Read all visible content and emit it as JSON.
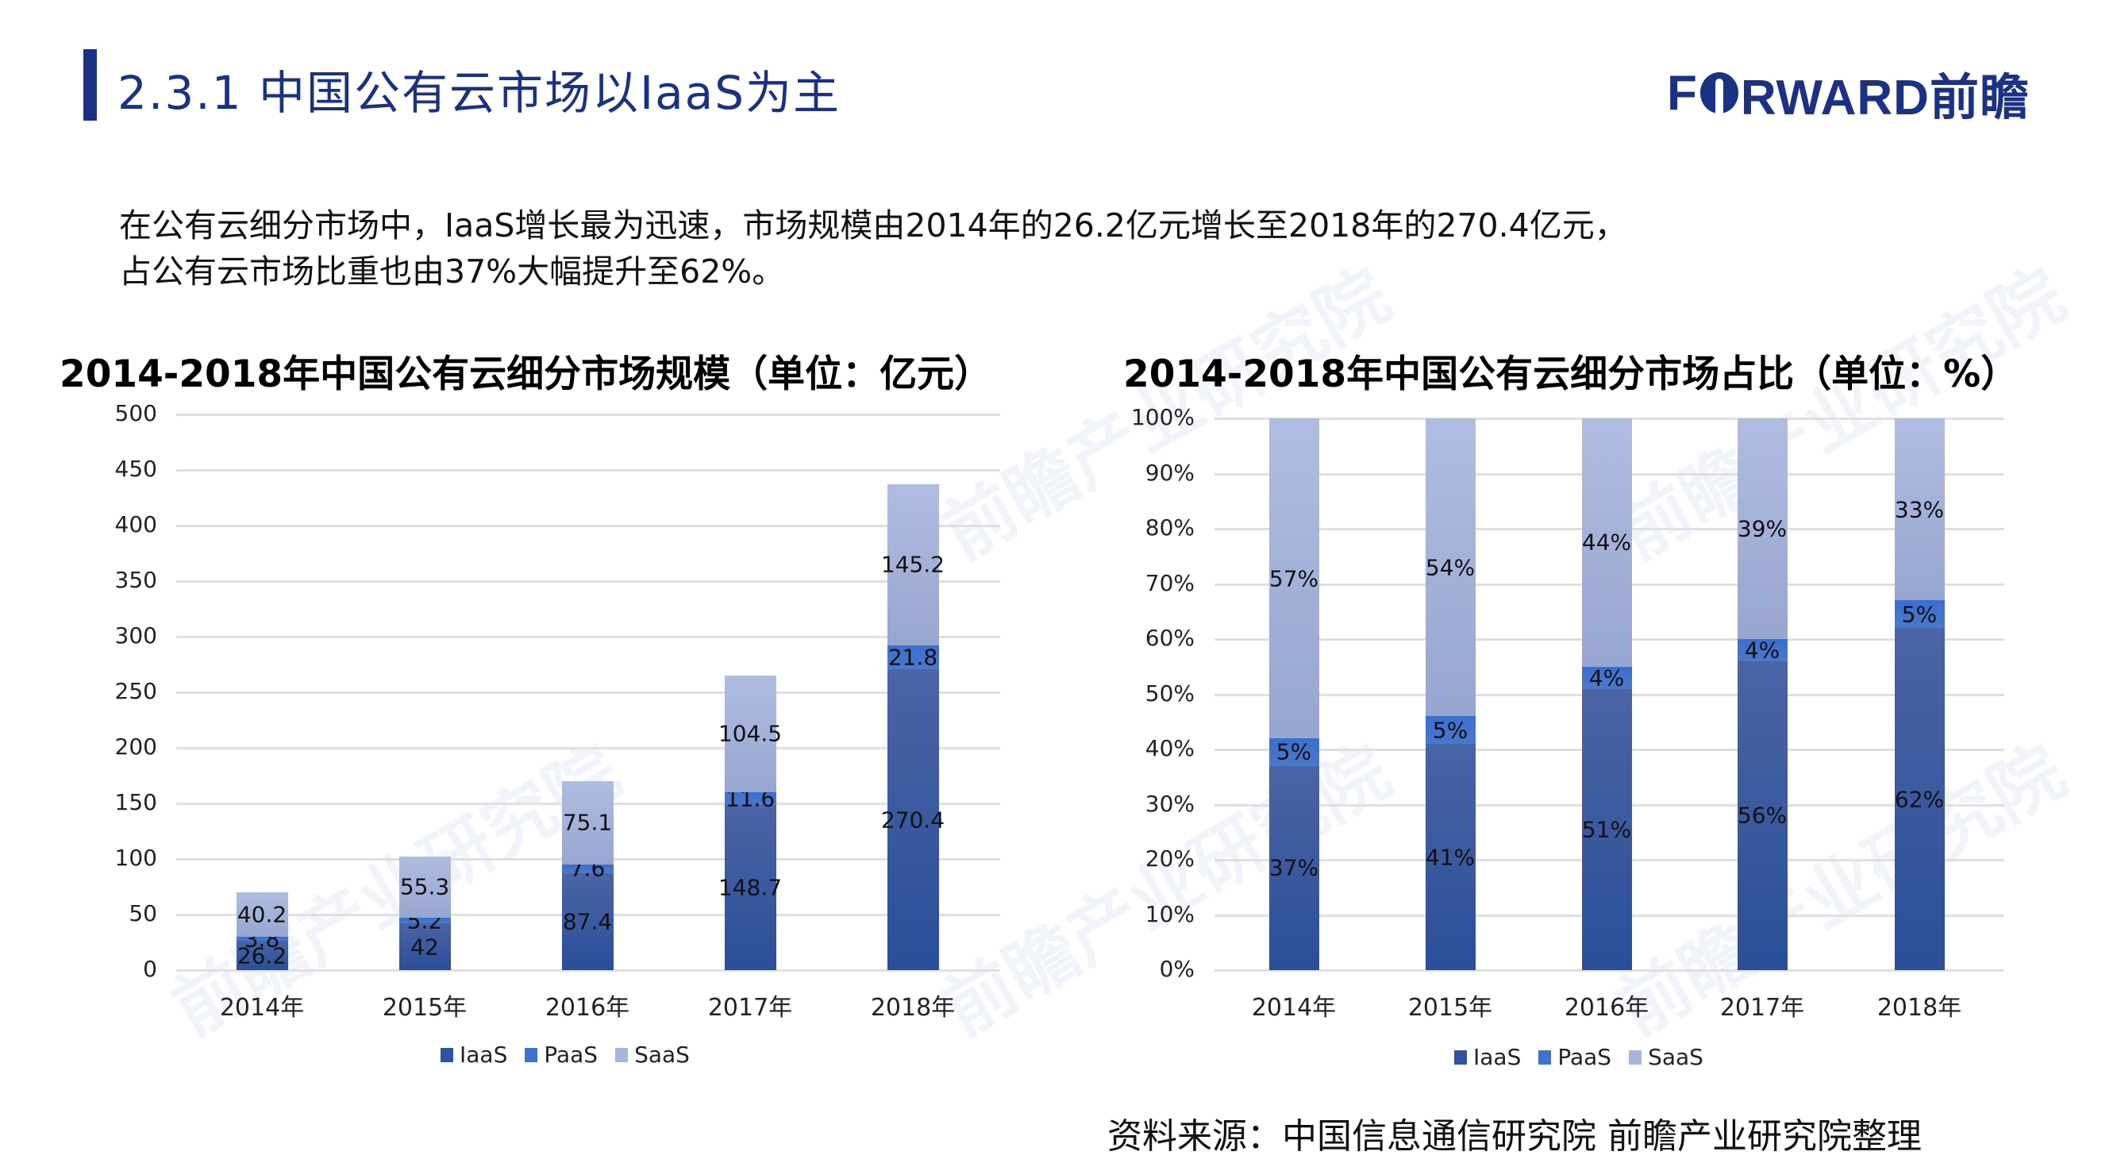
{
  "header": {
    "title": "2.3.1 中国公有云市场以IaaS为主",
    "logo_text_left": "F",
    "logo_text_right": "RWARD前瞻"
  },
  "intro": {
    "line1": "在公有云细分市场中，IaaS增长最为迅速，市场规模由2014年的26.2亿元增长至2018年的270.4亿元，",
    "line2": "占公有云市场比重也由37%大幅提升至62%。"
  },
  "colors": {
    "brand": "#1a3184",
    "iaas": "#2f53a0",
    "paas": "#3f72cf",
    "saas": "#a7b4dc"
  },
  "chart_data": [
    {
      "type": "bar",
      "stacked": true,
      "title": "2014-2018年中国公有云细分市场规模（单位：亿元）",
      "xlabel": "",
      "ylabel": "",
      "categories": [
        "2014年",
        "2015年",
        "2016年",
        "2017年",
        "2018年"
      ],
      "series": [
        {
          "name": "IaaS",
          "values": [
            26.2,
            42,
            87.4,
            148.7,
            270.4
          ]
        },
        {
          "name": "PaaS",
          "values": [
            3.8,
            5.2,
            7.6,
            11.6,
            21.8
          ]
        },
        {
          "name": "SaaS",
          "values": [
            40.2,
            55.3,
            75.1,
            104.5,
            145.2
          ]
        }
      ],
      "ylim": [
        0,
        500
      ],
      "yticks": [
        "0",
        "50",
        "100",
        "150",
        "200",
        "250",
        "300",
        "350",
        "400",
        "450",
        "500"
      ],
      "grid": true,
      "legend_position": "bottom"
    },
    {
      "type": "bar",
      "stacked": true,
      "percent": true,
      "title": "2014-2018年中国公有云细分市场占比（单位：%）",
      "xlabel": "",
      "ylabel": "",
      "categories": [
        "2014年",
        "2015年",
        "2016年",
        "2017年",
        "2018年"
      ],
      "series": [
        {
          "name": "IaaS",
          "values": [
            37,
            41,
            51,
            56,
            62
          ],
          "labels": [
            "37%",
            "41%",
            "51%",
            "56%",
            "62%"
          ]
        },
        {
          "name": "PaaS",
          "values": [
            5,
            5,
            4,
            4,
            5
          ],
          "labels": [
            "5%",
            "5%",
            "4%",
            "4%",
            "5%"
          ]
        },
        {
          "name": "SaaS",
          "values": [
            57,
            54,
            44,
            39,
            33
          ],
          "labels": [
            "57%",
            "54%",
            "44%",
            "39%",
            "33%"
          ]
        }
      ],
      "ylim": [
        0,
        100
      ],
      "yticks": [
        "0%",
        "10%",
        "20%",
        "30%",
        "40%",
        "50%",
        "60%",
        "70%",
        "80%",
        "90%",
        "100%"
      ],
      "grid": true,
      "legend_position": "bottom"
    }
  ],
  "legend": [
    "IaaS",
    "PaaS",
    "SaaS"
  ],
  "source": "资料来源：中国信息通信研究院  前瞻产业研究院整理",
  "watermark": "前瞻产业研究院"
}
